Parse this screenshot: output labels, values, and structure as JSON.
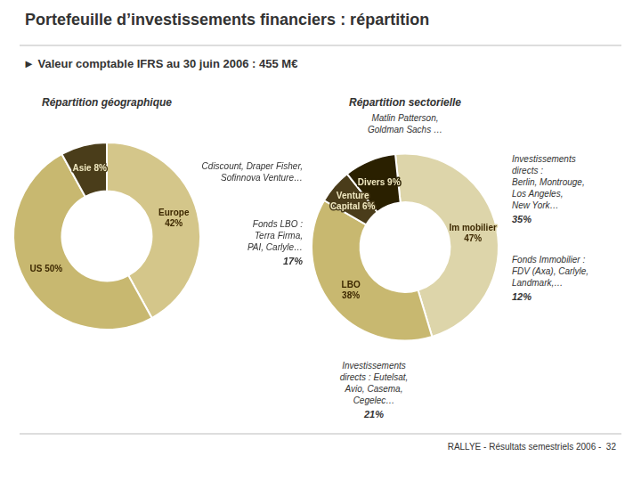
{
  "title": "Portefeuille d’investissements financiers : répartition",
  "subtitle": "► Valeur comptable IFRS au 30 juin 2006 : 455 M€",
  "annotations": [
    {
      "text": "RALLYE - Résultats semestriels 2006 -  32"
    }
  ],
  "chart_data": [
    {
      "type": "doughnut",
      "title": "Répartition géographique",
      "values": [
        42,
        50,
        8
      ],
      "colors": [
        "#d4c68a",
        "#c8b870",
        "#4a3d1a"
      ],
      "data_labels": true,
      "value_labels": [
        "Europe\n42%",
        "US 50%",
        "Asie 8%"
      ]
    },
    {
      "type": "doughnut",
      "title": "Répartition sectorielle",
      "values": [
        47,
        38,
        6,
        9
      ],
      "colors": [
        "#ddd5aa",
        "#c8b870",
        "#4a3c1a",
        "#2a2000"
      ],
      "data_labels": true,
      "value_labels": [
        "Im mobilier\n47%",
        "LBO\n38%",
        "Venture\nCapital 6%",
        "Divers 9%"
      ],
      "annotations": [
        {
          "text": "Matlin Patterson,\nGoldman Sachs …"
        },
        {
          "text": "Cdiscount, Draper Fisher,\nSofinnova Venture…"
        },
        {
          "text": "Fonds LBO :\nTerra Firma,\nPAI, Carlyle…",
          "value": 17,
          "label": "17%"
        },
        {
          "text": "Investissements\ndirects : Eutelsat,\nAvio, Casema,\nCegelec…",
          "value": 21,
          "label": "21%"
        },
        {
          "text": "Investissements\ndirects :\nBerlin, Montrouge,\nLos Angeles,\nNew York…",
          "value": 35,
          "label": "35%"
        },
        {
          "text": "Fonds Immobilier :\nFDV (Axa), Carlyle,\nLandmark,…",
          "value": 12,
          "label": "12%"
        }
      ]
    }
  ]
}
